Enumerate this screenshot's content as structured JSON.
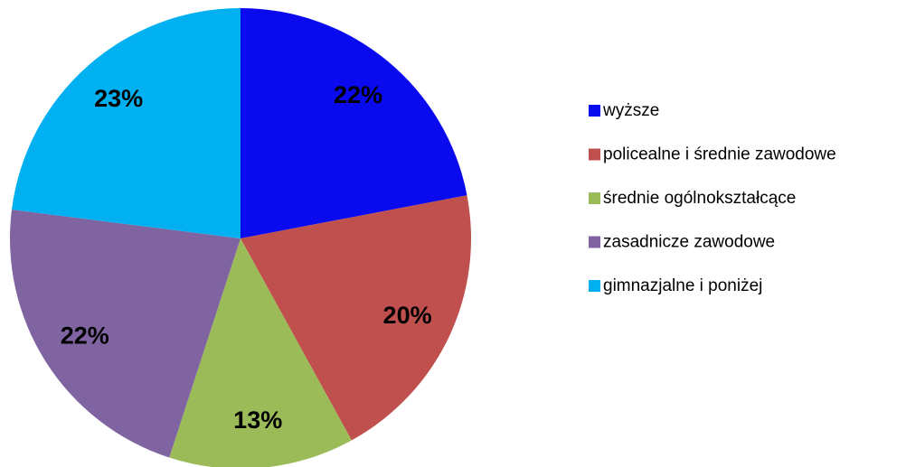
{
  "chart_data": {
    "type": "pie",
    "categories": [
      "wyższe",
      "policealne i średnie zawodowe",
      "średnie ogólnokształcące",
      "zasadnicze zawodowe",
      "gimnazjalne i poniżej"
    ],
    "values": [
      22,
      20,
      13,
      22,
      23
    ],
    "value_labels": [
      "22%",
      "20%",
      "13%",
      "22%",
      "23%"
    ],
    "colors": [
      "#0a0aee",
      "#c0504d",
      "#9bbb59",
      "#8064a2",
      "#00b0f0"
    ],
    "legend": "right"
  }
}
